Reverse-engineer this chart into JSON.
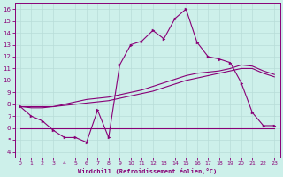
{
  "xlabel": "Windchill (Refroidissement éolien,°C)",
  "xlim": [
    -0.5,
    23.5
  ],
  "ylim": [
    3.5,
    16.5
  ],
  "xticks": [
    0,
    1,
    2,
    3,
    4,
    5,
    6,
    7,
    8,
    9,
    10,
    11,
    12,
    13,
    14,
    15,
    16,
    17,
    18,
    19,
    20,
    21,
    22,
    23
  ],
  "yticks": [
    4,
    5,
    6,
    7,
    8,
    9,
    10,
    11,
    12,
    13,
    14,
    15,
    16
  ],
  "bg_color": "#cdf0ea",
  "line_color": "#880077",
  "grid_color": "#b8ddd8",
  "line1_x": [
    0,
    1,
    2,
    3,
    4,
    5,
    6,
    7,
    8,
    9,
    10,
    11,
    12,
    13,
    14,
    15,
    16,
    17,
    18,
    19,
    20,
    21,
    22,
    23
  ],
  "line1_y": [
    7.8,
    7.0,
    6.6,
    5.8,
    5.2,
    5.2,
    4.8,
    7.5,
    5.2,
    11.3,
    13.0,
    13.3,
    14.2,
    13.5,
    15.2,
    16.0,
    13.2,
    12.0,
    11.8,
    11.5,
    9.8,
    7.3,
    6.2,
    6.2
  ],
  "line2_x": [
    0,
    1,
    2,
    3,
    4,
    5,
    6,
    7,
    8,
    9,
    10,
    11,
    12,
    13,
    14,
    15,
    16,
    17,
    18,
    19,
    20,
    21,
    22,
    23
  ],
  "line2_y": [
    7.8,
    7.8,
    7.8,
    7.8,
    8.0,
    8.2,
    8.4,
    8.5,
    8.6,
    8.8,
    9.0,
    9.2,
    9.5,
    9.8,
    10.1,
    10.4,
    10.6,
    10.7,
    10.8,
    11.0,
    11.3,
    11.2,
    10.8,
    10.5
  ],
  "line3_x": [
    0,
    1,
    2,
    3,
    4,
    5,
    6,
    7,
    8,
    9,
    10,
    11,
    12,
    13,
    14,
    15,
    16,
    17,
    18,
    19,
    20,
    21,
    22,
    23
  ],
  "line3_y": [
    7.8,
    7.7,
    7.7,
    7.8,
    7.9,
    8.0,
    8.1,
    8.2,
    8.3,
    8.5,
    8.7,
    8.9,
    9.1,
    9.4,
    9.7,
    10.0,
    10.2,
    10.4,
    10.6,
    10.8,
    11.0,
    11.0,
    10.6,
    10.3
  ],
  "line4_x": [
    0,
    23
  ],
  "line4_y": [
    6.0,
    6.0
  ]
}
